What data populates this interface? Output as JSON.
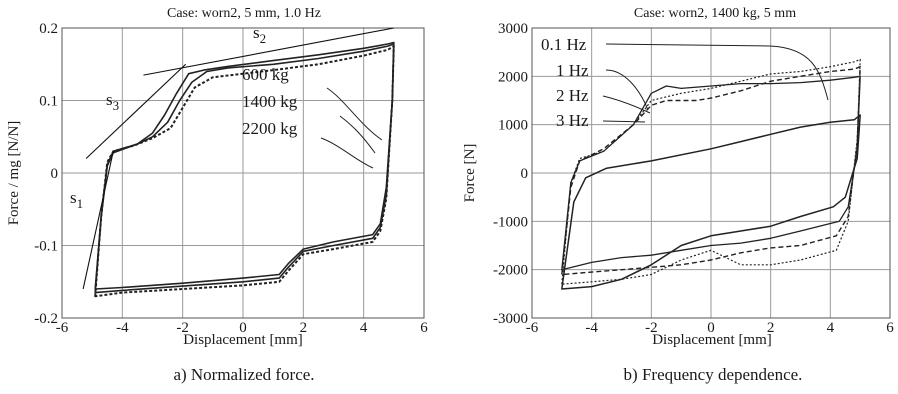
{
  "captions": {
    "a": "a) Normalized force.",
    "b": "b) Frequency dependence."
  },
  "chart_data": [
    {
      "type": "line",
      "title": "Case: worn2, 5 mm, 1.0 Hz",
      "xlabel": "Displacement [mm]",
      "ylabel": "Force / mg [N/N]",
      "xlim": [
        -6,
        6
      ],
      "ylim": [
        -0.2,
        0.2
      ],
      "xticks": [
        "-6",
        "-4",
        "-2",
        "0",
        "2",
        "4",
        "6"
      ],
      "yticks": [
        "0.2",
        "0.1",
        "0",
        "-0.1",
        "-0.2"
      ],
      "grid": true,
      "series_labels": [
        "600 kg",
        "1400 kg",
        "2200 kg"
      ],
      "slope_labels": [
        {
          "base": "s",
          "sub": "1"
        },
        {
          "base": "s",
          "sub": "2"
        },
        {
          "base": "s",
          "sub": "3"
        }
      ],
      "series": [
        {
          "name": "600 kg",
          "upper": [
            [
              -4.9,
              -0.16
            ],
            [
              -4.7,
              -0.06
            ],
            [
              -4.5,
              0.01
            ],
            [
              -4.3,
              0.028
            ],
            [
              -3.5,
              0.04
            ],
            [
              -3.0,
              0.055
            ],
            [
              -2.6,
              0.08
            ],
            [
              -2.2,
              0.11
            ],
            [
              -1.8,
              0.137
            ],
            [
              -1.3,
              0.142
            ],
            [
              -0.5,
              0.147
            ],
            [
              1,
              0.155
            ],
            [
              2.5,
              0.163
            ],
            [
              4,
              0.172
            ],
            [
              4.8,
              0.178
            ],
            [
              5.0,
              0.18
            ]
          ],
          "lower": [
            [
              5.0,
              0.18
            ],
            [
              4.95,
              0.1
            ],
            [
              4.75,
              -0.02
            ],
            [
              4.55,
              -0.07
            ],
            [
              4.3,
              -0.085
            ],
            [
              3,
              -0.095
            ],
            [
              2,
              -0.105
            ],
            [
              1.5,
              -0.125
            ],
            [
              1.2,
              -0.14
            ],
            [
              0,
              -0.145
            ],
            [
              -2,
              -0.152
            ],
            [
              -4,
              -0.158
            ],
            [
              -4.9,
              -0.16
            ]
          ]
        },
        {
          "name": "1400 kg",
          "upper": [
            [
              -4.9,
              -0.165
            ],
            [
              -4.7,
              -0.06
            ],
            [
              -4.5,
              0.012
            ],
            [
              -4.3,
              0.03
            ],
            [
              -3.5,
              0.04
            ],
            [
              -3.0,
              0.05
            ],
            [
              -2.5,
              0.07
            ],
            [
              -2.1,
              0.1
            ],
            [
              -1.7,
              0.125
            ],
            [
              -1.2,
              0.14
            ],
            [
              -0.5,
              0.145
            ],
            [
              1,
              0.15
            ],
            [
              2.5,
              0.158
            ],
            [
              4,
              0.168
            ],
            [
              4.8,
              0.175
            ],
            [
              5.0,
              0.178
            ]
          ],
          "lower": [
            [
              5.0,
              0.178
            ],
            [
              4.95,
              0.1
            ],
            [
              4.75,
              -0.03
            ],
            [
              4.55,
              -0.075
            ],
            [
              4.3,
              -0.09
            ],
            [
              3,
              -0.1
            ],
            [
              2,
              -0.108
            ],
            [
              1.5,
              -0.13
            ],
            [
              1.2,
              -0.145
            ],
            [
              0,
              -0.15
            ],
            [
              -2,
              -0.156
            ],
            [
              -4,
              -0.162
            ],
            [
              -4.9,
              -0.165
            ]
          ]
        },
        {
          "name": "2200 kg",
          "upper": [
            [
              -4.9,
              -0.17
            ],
            [
              -4.7,
              -0.06
            ],
            [
              -4.5,
              0.015
            ],
            [
              -4.3,
              0.03
            ],
            [
              -3.6,
              0.038
            ],
            [
              -3.0,
              0.048
            ],
            [
              -2.4,
              0.062
            ],
            [
              -2.0,
              0.09
            ],
            [
              -1.6,
              0.118
            ],
            [
              -1.0,
              0.132
            ],
            [
              0,
              0.137
            ],
            [
              1,
              0.142
            ],
            [
              2.5,
              0.15
            ],
            [
              4,
              0.162
            ],
            [
              4.8,
              0.17
            ],
            [
              5.0,
              0.175
            ]
          ],
          "lower": [
            [
              5.0,
              0.175
            ],
            [
              4.95,
              0.1
            ],
            [
              4.75,
              -0.035
            ],
            [
              4.55,
              -0.08
            ],
            [
              4.3,
              -0.095
            ],
            [
              3,
              -0.105
            ],
            [
              2,
              -0.112
            ],
            [
              1.5,
              -0.135
            ],
            [
              1.2,
              -0.15
            ],
            [
              0,
              -0.155
            ],
            [
              -2,
              -0.16
            ],
            [
              -4,
              -0.165
            ],
            [
              -4.9,
              -0.17
            ]
          ]
        }
      ],
      "guide_lines": [
        {
          "label": "s1",
          "from": [
            -5.3,
            -0.16
          ],
          "to": [
            -4.3,
            0.03
          ]
        },
        {
          "label": "s2",
          "from": [
            -3.3,
            0.135
          ],
          "to": [
            5.0,
            0.2
          ]
        },
        {
          "label": "s3",
          "from": [
            -5.2,
            0.02
          ],
          "to": [
            -1.9,
            0.15
          ]
        }
      ]
    },
    {
      "type": "line",
      "title": "Case: worn2, 1400 kg, 5 mm",
      "xlabel": "Displacement [mm]",
      "ylabel": "Force [N]",
      "xlim": [
        -6,
        6
      ],
      "ylim": [
        -3000,
        3000
      ],
      "xticks": [
        "-6",
        "-4",
        "-2",
        "0",
        "2",
        "4",
        "6"
      ],
      "yticks": [
        "3000",
        "2000",
        "1000",
        "0",
        "-1000",
        "-2000",
        "-3000"
      ],
      "grid": true,
      "series_labels": [
        "0.1 Hz",
        "1 Hz",
        "2 Hz",
        "3 Hz"
      ],
      "series": [
        {
          "name": "0.1 Hz",
          "upper": [
            [
              -5,
              -2000
            ],
            [
              -4.7,
              -200
            ],
            [
              -4.4,
              250
            ],
            [
              -3.6,
              450
            ],
            [
              -2.6,
              1000
            ],
            [
              -2,
              1650
            ],
            [
              -1.5,
              1800
            ],
            [
              -1,
              1750
            ],
            [
              0,
              1800
            ],
            [
              1,
              1850
            ],
            [
              2,
              1850
            ],
            [
              3,
              1870
            ],
            [
              4,
              1920
            ],
            [
              4.8,
              1980
            ],
            [
              5,
              2000
            ]
          ],
          "lower": [
            [
              5,
              2000
            ],
            [
              4.9,
              500
            ],
            [
              4.6,
              -700
            ],
            [
              4.3,
              -1000
            ],
            [
              3,
              -1200
            ],
            [
              2,
              -1350
            ],
            [
              1,
              -1450
            ],
            [
              0,
              -1500
            ],
            [
              -1,
              -1600
            ],
            [
              -2,
              -1700
            ],
            [
              -3,
              -1750
            ],
            [
              -4,
              -1850
            ],
            [
              -5,
              -2000
            ]
          ]
        },
        {
          "name": "1 Hz",
          "upper": [
            [
              -5,
              -2100
            ],
            [
              -4.7,
              -300
            ],
            [
              -4.4,
              250
            ],
            [
              -3.6,
              500
            ],
            [
              -2.6,
              1000
            ],
            [
              -2,
              1400
            ],
            [
              -1.5,
              1500
            ],
            [
              -0.5,
              1500
            ],
            [
              0,
              1550
            ],
            [
              1,
              1700
            ],
            [
              2,
              1900
            ],
            [
              3,
              2000
            ],
            [
              4,
              2100
            ],
            [
              4.8,
              2150
            ],
            [
              5,
              2200
            ]
          ],
          "lower": [
            [
              5,
              2200
            ],
            [
              4.9,
              600
            ],
            [
              4.6,
              -900
            ],
            [
              4.2,
              -1300
            ],
            [
              3,
              -1500
            ],
            [
              2,
              -1550
            ],
            [
              1,
              -1650
            ],
            [
              0,
              -1800
            ],
            [
              -1,
              -1900
            ],
            [
              -2,
              -1950
            ],
            [
              -3,
              -2000
            ],
            [
              -4,
              -2050
            ],
            [
              -5,
              -2100
            ]
          ]
        },
        {
          "name": "2 Hz",
          "upper": [
            [
              -5,
              -2300
            ],
            [
              -4.7,
              -200
            ],
            [
              -4.4,
              300
            ],
            [
              -3.6,
              450
            ],
            [
              -2.6,
              1000
            ],
            [
              -2,
              1500
            ],
            [
              -1,
              1650
            ],
            [
              0,
              1750
            ],
            [
              1,
              1900
            ],
            [
              2,
              2050
            ],
            [
              3,
              2100
            ],
            [
              4,
              2200
            ],
            [
              4.8,
              2300
            ],
            [
              5,
              2350
            ]
          ],
          "lower": [
            [
              5,
              2350
            ],
            [
              4.9,
              700
            ],
            [
              4.6,
              -1000
            ],
            [
              4.2,
              -1600
            ],
            [
              3,
              -1800
            ],
            [
              2,
              -1900
            ],
            [
              1,
              -1900
            ],
            [
              0,
              -1600
            ],
            [
              -1,
              -1800
            ],
            [
              -2,
              -2100
            ],
            [
              -3,
              -2200
            ],
            [
              -4,
              -2250
            ],
            [
              -5,
              -2300
            ]
          ]
        },
        {
          "name": "3 Hz",
          "upper": [
            [
              -5,
              -2400
            ],
            [
              -4.6,
              -600
            ],
            [
              -4.2,
              -100
            ],
            [
              -3.5,
              100
            ],
            [
              -2,
              250
            ],
            [
              0,
              500
            ],
            [
              1,
              650
            ],
            [
              2,
              800
            ],
            [
              3,
              950
            ],
            [
              4,
              1050
            ],
            [
              4.8,
              1100
            ],
            [
              5,
              1200
            ]
          ],
          "lower": [
            [
              5,
              1200
            ],
            [
              4.9,
              300
            ],
            [
              4.5,
              -500
            ],
            [
              4.1,
              -700
            ],
            [
              3,
              -900
            ],
            [
              2,
              -1100
            ],
            [
              1,
              -1200
            ],
            [
              0,
              -1300
            ],
            [
              -1,
              -1500
            ],
            [
              -2,
              -1900
            ],
            [
              -3,
              -2200
            ],
            [
              -4,
              -2350
            ],
            [
              -5,
              -2400
            ]
          ]
        }
      ]
    }
  ]
}
